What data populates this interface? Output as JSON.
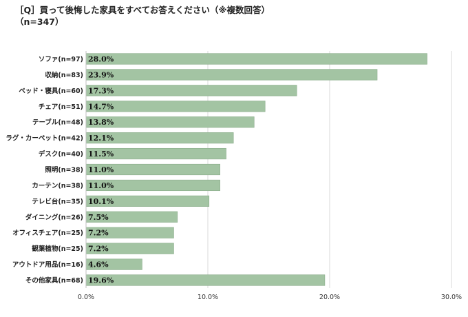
{
  "title": {
    "line1": "［Q］買って後悔した家具をすべてお答えください（※複数回答）",
    "line2": "（n=347）"
  },
  "colors": {
    "bar": "#a3c4a3",
    "bar_stroke": "#8aac8a",
    "grid": "#d9d9d9",
    "axis": "#bfbfbf"
  },
  "chart_data": {
    "type": "bar",
    "orientation": "horizontal",
    "categories": [
      "ソファ(n=97)",
      "収納(n=83)",
      "ベッド・寝具(n=60)",
      "チェア(n=51)",
      "テーブル(n=48)",
      "ラグ・カーペット(n=42)",
      "デスク(n=40)",
      "照明(n=38)",
      "カーテン(n=38)",
      "テレビ台(n=35)",
      "ダイニング(n=26)",
      "オフィスチェア(n=25)",
      "観葉植物(n=25)",
      "アウトドア用品(n=16)",
      "その他家具(n=68)"
    ],
    "values": [
      28.0,
      23.9,
      17.3,
      14.7,
      13.8,
      12.1,
      11.5,
      11.0,
      11.0,
      10.1,
      7.5,
      7.2,
      7.2,
      4.6,
      19.6
    ],
    "value_labels": [
      "28.0%",
      "23.9%",
      "17.3%",
      "14.7%",
      "13.8%",
      "12.1%",
      "11.5%",
      "11.0%",
      "11.0%",
      "10.1%",
      "7.5%",
      "7.2%",
      "7.2%",
      "4.6%",
      "19.6%"
    ],
    "xlim": [
      0,
      30
    ],
    "xticks": [
      0,
      10,
      20,
      30
    ],
    "xtick_labels": [
      "0.0%",
      "10.0%",
      "20.0%",
      "30.0%"
    ],
    "grid": true
  }
}
